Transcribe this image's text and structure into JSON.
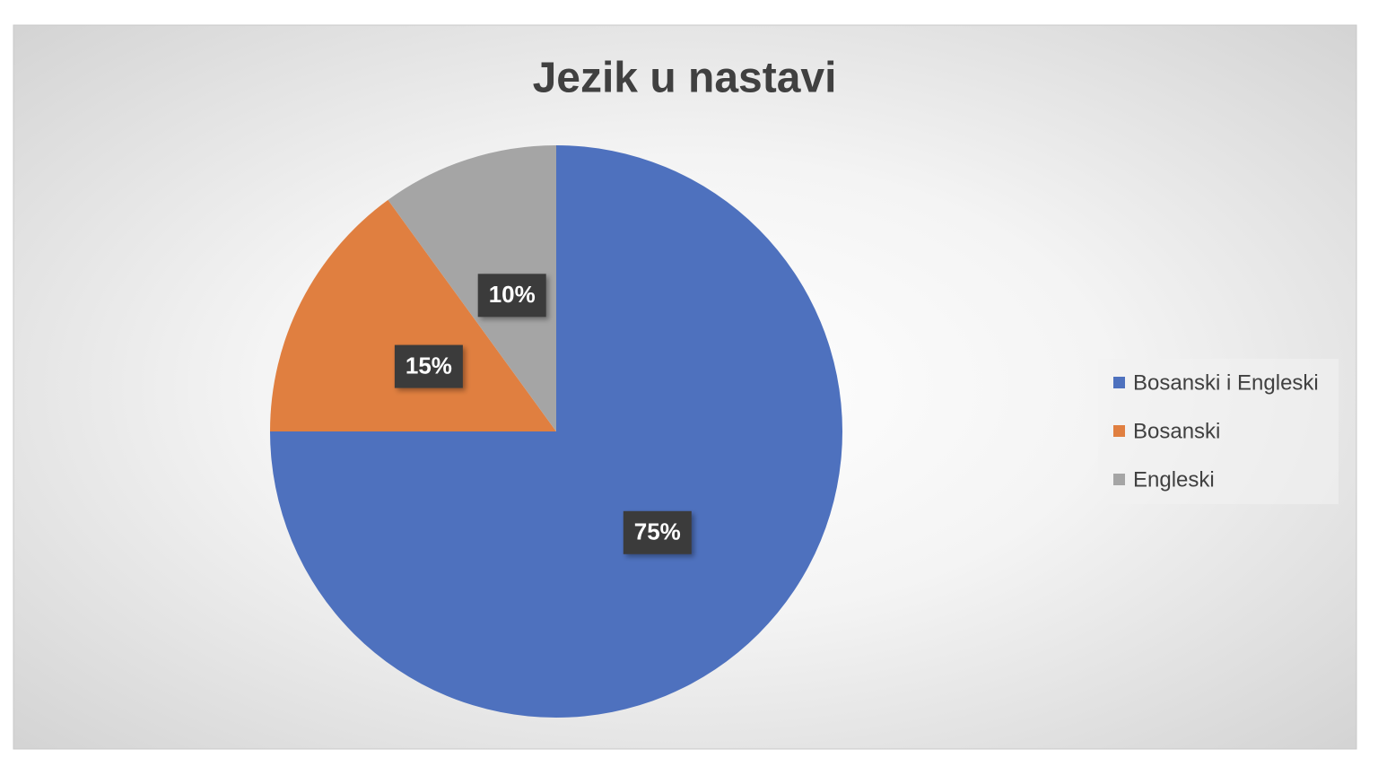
{
  "chart_data": {
    "type": "pie",
    "title": "Jezik u nastavi",
    "categories": [
      "Bosanski i Engleski",
      "Bosanski",
      "Engleski"
    ],
    "values": [
      75,
      15,
      10
    ],
    "value_labels": [
      "75%",
      "15%",
      "10%"
    ],
    "colors": [
      "#4e71be",
      "#e07f40",
      "#a5a5a5"
    ],
    "legend": "right"
  }
}
